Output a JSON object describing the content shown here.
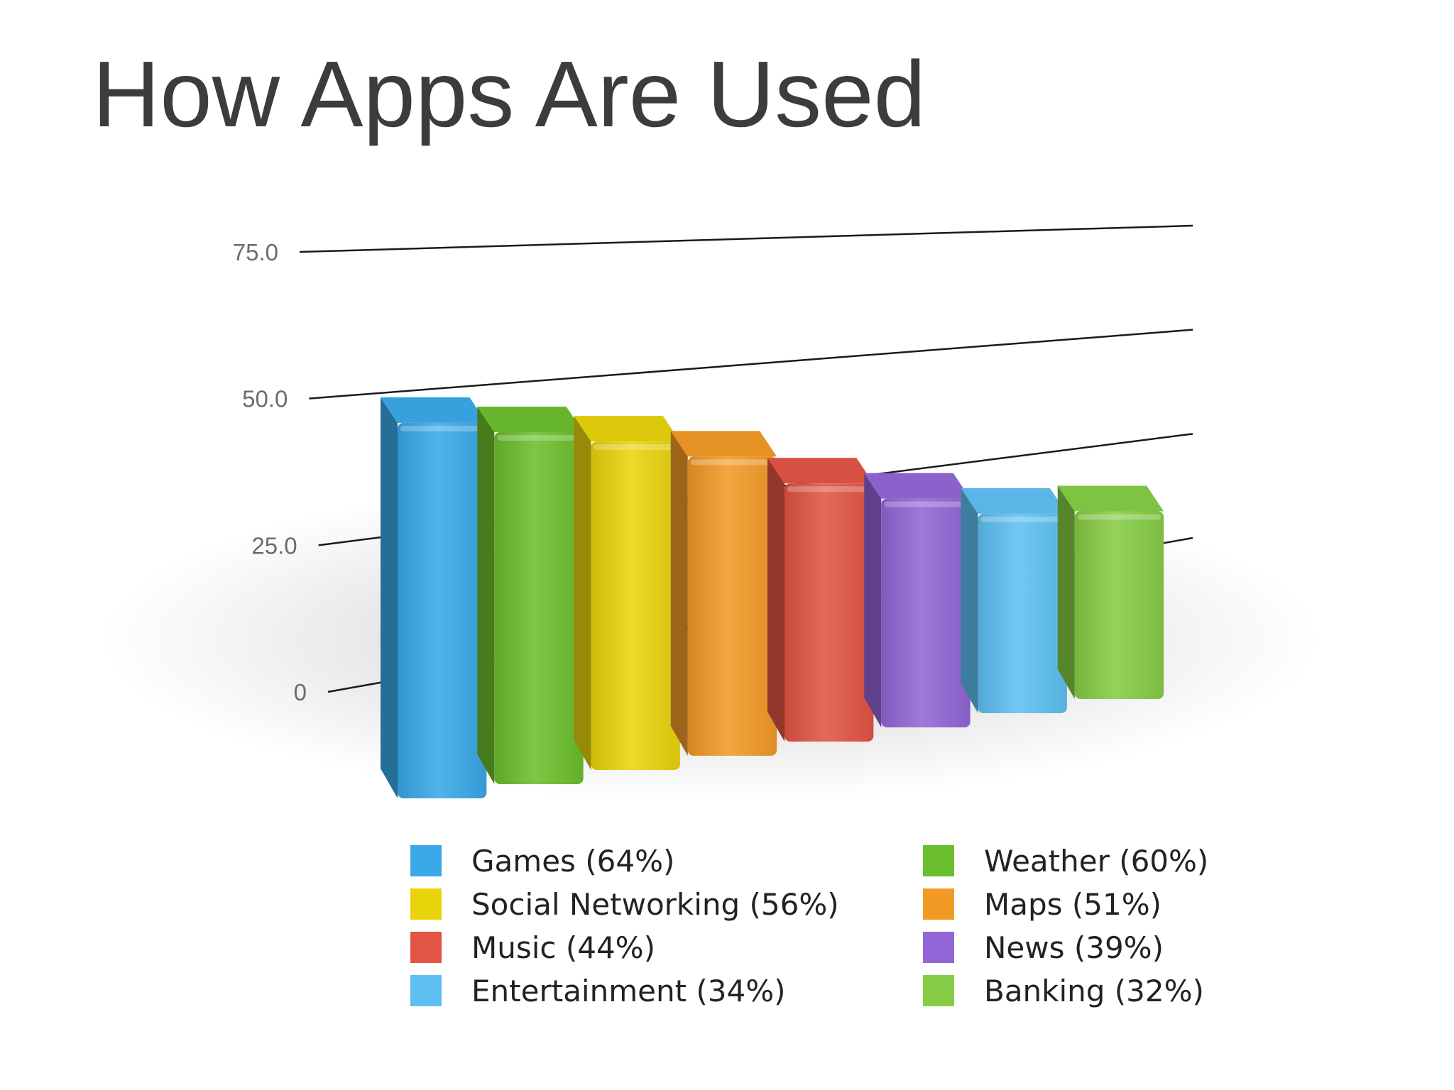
{
  "slide": {
    "title": "How Apps Are Used"
  },
  "chart_data": {
    "type": "bar",
    "title": "",
    "xlabel": "",
    "ylabel": "",
    "ylim": [
      0,
      75
    ],
    "yticks": [
      "0",
      "25.0",
      "50.0",
      "75.0"
    ],
    "ytick_values": [
      0,
      25,
      50,
      75
    ],
    "grid": true,
    "style": "3d",
    "legend_position": "bottom",
    "categories": [
      "Games",
      "Weather",
      "Social Networking",
      "Maps",
      "Music",
      "News",
      "Entertainment",
      "Banking"
    ],
    "values": [
      64,
      60,
      56,
      51,
      44,
      39,
      34,
      32
    ],
    "colors": [
      "#39a9e8",
      "#6cbf2c",
      "#e9d40c",
      "#f29a26",
      "#e25444",
      "#9266d6",
      "#5ec0f2",
      "#86cd45"
    ],
    "legend": [
      {
        "label": "Games (64%)",
        "color": "#39a9e8"
      },
      {
        "label": "Weather (60%)",
        "color": "#6cbf2c"
      },
      {
        "label": "Social Networking (56%)",
        "color": "#e9d40c"
      },
      {
        "label": "Maps (51%)",
        "color": "#f29a26"
      },
      {
        "label": "Music (44%)",
        "color": "#e25444"
      },
      {
        "label": "News (39%)",
        "color": "#9266d6"
      },
      {
        "label": "Entertainment (34%)",
        "color": "#5ec0f2"
      },
      {
        "label": "Banking (32%)",
        "color": "#86cd45"
      }
    ]
  }
}
